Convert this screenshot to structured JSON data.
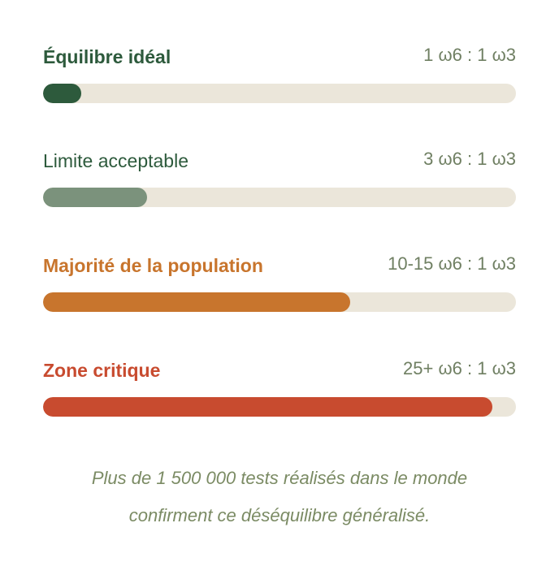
{
  "levels": [
    {
      "label": "Équilibre idéal",
      "ratio": "1 ω6 : 1 ω3",
      "fill_fraction": 0.08,
      "color": "#2d5a3c",
      "label_color": "#2d5a3c",
      "bold": true
    },
    {
      "label": "Limite acceptable",
      "ratio": "3 ω6 : 1 ω3",
      "fill_fraction": 0.22,
      "color": "#7b927c",
      "label_color": "#2d5a3c",
      "bold": false
    },
    {
      "label": "Majorité de la population",
      "ratio": "10-15 ω6 : 1 ω3",
      "fill_fraction": 0.65,
      "color": "#c8752d",
      "label_color": "#c8752d",
      "bold": true
    },
    {
      "label": "Zone critique",
      "ratio": "25+ ω6 : 1 ω3",
      "fill_fraction": 0.95,
      "color": "#c84b2f",
      "label_color": "#c84b2f",
      "bold": true
    }
  ],
  "footer": {
    "line1": "Plus de 1 500 000 tests réalisés dans le monde",
    "line2": "confirment ce déséquilibre généralisé."
  }
}
